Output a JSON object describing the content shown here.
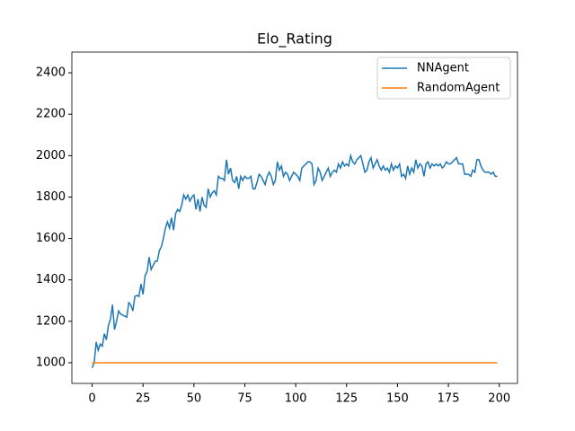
{
  "chart_data": {
    "type": "line",
    "title": "Elo_Rating",
    "x": [
      0,
      1,
      2,
      3,
      4,
      5,
      6,
      7,
      8,
      9,
      10,
      11,
      12,
      13,
      14,
      15,
      16,
      17,
      18,
      19,
      20,
      21,
      22,
      23,
      24,
      25,
      26,
      27,
      28,
      29,
      30,
      31,
      32,
      33,
      34,
      35,
      36,
      37,
      38,
      39,
      40,
      41,
      42,
      43,
      44,
      45,
      46,
      47,
      48,
      49,
      50,
      51,
      52,
      53,
      54,
      55,
      56,
      57,
      58,
      59,
      60,
      61,
      62,
      63,
      64,
      65,
      66,
      67,
      68,
      69,
      70,
      71,
      72,
      73,
      74,
      75,
      76,
      77,
      78,
      79,
      80,
      81,
      82,
      83,
      84,
      85,
      86,
      87,
      88,
      89,
      90,
      91,
      92,
      93,
      94,
      95,
      96,
      97,
      98,
      99,
      100,
      101,
      102,
      103,
      104,
      105,
      106,
      107,
      108,
      109,
      110,
      111,
      112,
      113,
      114,
      115,
      116,
      117,
      118,
      119,
      120,
      121,
      122,
      123,
      124,
      125,
      126,
      127,
      128,
      129,
      130,
      131,
      132,
      133,
      134,
      135,
      136,
      137,
      138,
      139,
      140,
      141,
      142,
      143,
      144,
      145,
      146,
      147,
      148,
      149,
      150,
      151,
      152,
      153,
      154,
      155,
      156,
      157,
      158,
      159,
      160,
      161,
      162,
      163,
      164,
      165,
      166,
      167,
      168,
      169,
      170,
      171,
      172,
      173,
      174,
      175,
      176,
      177,
      178,
      179,
      180,
      181,
      182,
      183,
      184,
      185,
      186,
      187,
      188,
      189,
      190,
      191,
      192,
      193,
      194,
      195,
      196,
      197,
      198,
      199
    ],
    "series": [
      {
        "name": "NNAgent",
        "color": "#1f77b4",
        "values": [
          975,
          1000,
          1100,
          1060,
          1090,
          1080,
          1140,
          1110,
          1180,
          1210,
          1280,
          1160,
          1200,
          1250,
          1235,
          1230,
          1225,
          1220,
          1290,
          1280,
          1250,
          1320,
          1325,
          1320,
          1380,
          1330,
          1420,
          1440,
          1510,
          1450,
          1470,
          1490,
          1490,
          1540,
          1560,
          1600,
          1650,
          1680,
          1650,
          1700,
          1640,
          1720,
          1740,
          1730,
          1760,
          1810,
          1790,
          1810,
          1780,
          1800,
          1810,
          1740,
          1790,
          1730,
          1800,
          1760,
          1750,
          1840,
          1800,
          1820,
          1830,
          1810,
          1900,
          1890,
          1890,
          1880,
          1980,
          1910,
          1940,
          1880,
          1870,
          1900,
          1840,
          1900,
          1880,
          1900,
          1890,
          1890,
          1900,
          1840,
          1840,
          1870,
          1910,
          1900,
          1880,
          1860,
          1900,
          1920,
          1900,
          1860,
          1880,
          1970,
          1930,
          1950,
          1900,
          1920,
          1910,
          1880,
          1900,
          1920,
          1910,
          1900,
          1880,
          1940,
          1950,
          1960,
          1970,
          1970,
          1960,
          1860,
          1880,
          1940,
          1920,
          1880,
          1900,
          1920,
          1940,
          1900,
          1920,
          1930,
          1920,
          1960,
          1940,
          1970,
          1950,
          1960,
          1950,
          2000,
          1970,
          1960,
          1980,
          1990,
          2000,
          1960,
          1920,
          1930,
          1970,
          1990,
          1940,
          1960,
          1980,
          1950,
          1930,
          1950,
          1930,
          1940,
          1920,
          1960,
          1930,
          1950,
          1940,
          1960,
          1900,
          1910,
          1890,
          1950,
          1910,
          1940,
          1920,
          1980,
          1940,
          1960,
          1950,
          1900,
          1960,
          1970,
          1940,
          1960,
          1950,
          1960,
          1950,
          1960,
          1940,
          1950,
          1970,
          1960,
          1960,
          1970,
          1980,
          1990,
          1960,
          1960,
          1960,
          1910,
          1910,
          1910,
          1900,
          1930,
          1920,
          1980,
          1980,
          1950,
          1930,
          1920,
          1920,
          1920,
          1910,
          1920,
          1900,
          1900
        ]
      },
      {
        "name": "RandomAgent",
        "color": "#ff7f0e",
        "values": [
          1000,
          1000,
          1000,
          1000,
          1000,
          1000,
          1000,
          1000,
          1000,
          1000,
          1000,
          1000,
          1000,
          1000,
          1000,
          1000,
          1000,
          1000,
          1000,
          1000,
          1000,
          1000,
          1000,
          1000,
          1000,
          1000,
          1000,
          1000,
          1000,
          1000,
          1000,
          1000,
          1000,
          1000,
          1000,
          1000,
          1000,
          1000,
          1000,
          1000,
          1000,
          1000,
          1000,
          1000,
          1000,
          1000,
          1000,
          1000,
          1000,
          1000,
          1000,
          1000,
          1000,
          1000,
          1000,
          1000,
          1000,
          1000,
          1000,
          1000,
          1000,
          1000,
          1000,
          1000,
          1000,
          1000,
          1000,
          1000,
          1000,
          1000,
          1000,
          1000,
          1000,
          1000,
          1000,
          1000,
          1000,
          1000,
          1000,
          1000,
          1000,
          1000,
          1000,
          1000,
          1000,
          1000,
          1000,
          1000,
          1000,
          1000,
          1000,
          1000,
          1000,
          1000,
          1000,
          1000,
          1000,
          1000,
          1000,
          1000,
          1000,
          1000,
          1000,
          1000,
          1000,
          1000,
          1000,
          1000,
          1000,
          1000,
          1000,
          1000,
          1000,
          1000,
          1000,
          1000,
          1000,
          1000,
          1000,
          1000,
          1000,
          1000,
          1000,
          1000,
          1000,
          1000,
          1000,
          1000,
          1000,
          1000,
          1000,
          1000,
          1000,
          1000,
          1000,
          1000,
          1000,
          1000,
          1000,
          1000,
          1000,
          1000,
          1000,
          1000,
          1000,
          1000,
          1000,
          1000,
          1000,
          1000,
          1000,
          1000,
          1000,
          1000,
          1000,
          1000,
          1000,
          1000,
          1000,
          1000,
          1000,
          1000,
          1000,
          1000,
          1000,
          1000,
          1000,
          1000,
          1000,
          1000,
          1000,
          1000,
          1000,
          1000,
          1000,
          1000,
          1000,
          1000,
          1000,
          1000,
          1000,
          1000,
          1000,
          1000,
          1000,
          1000,
          1000,
          1000,
          1000,
          1000,
          1000,
          1000,
          1000,
          1000,
          1000,
          1000,
          1000,
          1000,
          1000,
          1000
        ]
      }
    ],
    "xlim": [
      -9.95,
      208.95
    ],
    "xticks": [
      0,
      25,
      50,
      75,
      100,
      125,
      150,
      175,
      200
    ],
    "ylim": [
      900,
      2500
    ],
    "yticks": [
      1000,
      1200,
      1400,
      1600,
      1800,
      2000,
      2200,
      2400
    ],
    "legend": "upper right"
  }
}
